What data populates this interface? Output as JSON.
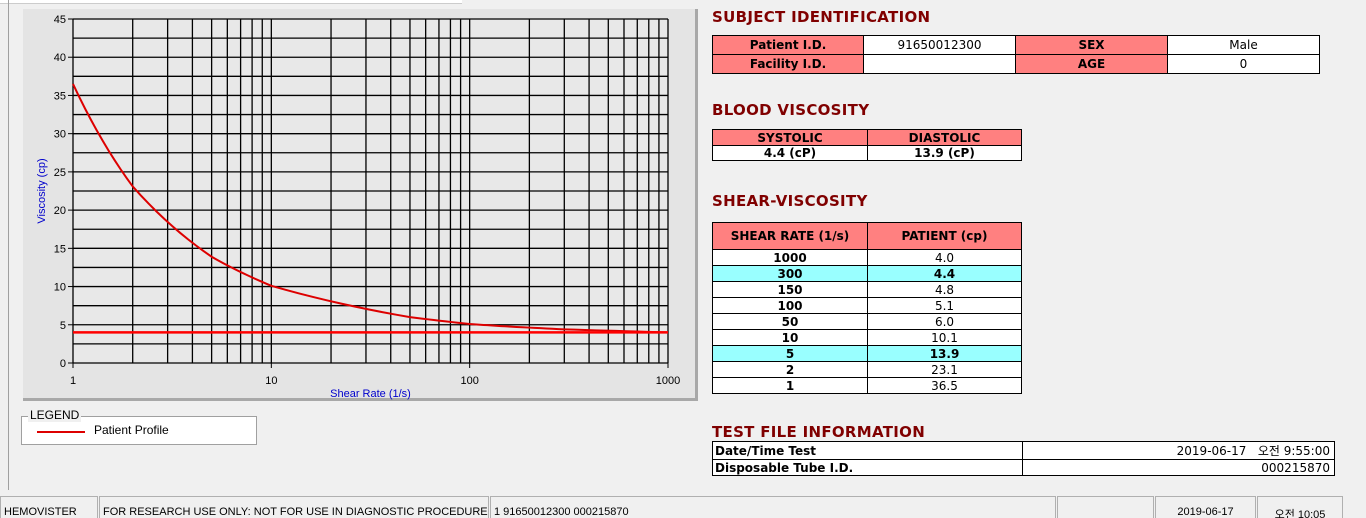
{
  "chart_data": {
    "type": "line",
    "xlabel": "Shear Rate (1/s)",
    "ylabel": "Viscosity (cp)",
    "xscale": "log",
    "xlim": [
      1,
      1000
    ],
    "ylim": [
      0,
      45
    ],
    "xticks": [
      "1",
      "10",
      "100",
      "1000"
    ],
    "yticks": [
      "0",
      "5",
      "10",
      "15",
      "20",
      "25",
      "30",
      "35",
      "40",
      "45"
    ],
    "grid": true,
    "series": [
      {
        "name": "Patient Profile",
        "color": "#dd0000",
        "x": [
          1,
          2,
          5,
          10,
          50,
          100,
          150,
          300,
          1000
        ],
        "y": [
          36.5,
          23.1,
          13.9,
          10.1,
          6.0,
          5.1,
          4.8,
          4.4,
          4.0
        ]
      },
      {
        "color": "#ff0000",
        "x": [
          1,
          1000
        ],
        "y": [
          4.0,
          4.0
        ]
      }
    ]
  },
  "legend": {
    "title": "LEGEND",
    "items": [
      {
        "label": "Patient Profile",
        "color": "#dd0000"
      }
    ]
  },
  "subject": {
    "title": "SUBJECT IDENTIFICATION",
    "patient_id_label": "Patient I.D.",
    "patient_id": "91650012300",
    "sex_label": "SEX",
    "sex": "Male",
    "facility_label": "Facility I.D.",
    "facility": "",
    "age_label": "AGE",
    "age": "0"
  },
  "blood": {
    "title": "BLOOD VISCOSITY",
    "systolic_label": "SYSTOLIC",
    "diastolic_label": "DIASTOLIC",
    "systolic": "4.4 (cP)",
    "diastolic": "13.9 (cP)"
  },
  "shear": {
    "title": "SHEAR-VISCOSITY",
    "col1": "SHEAR RATE (1/s)",
    "col2": "PATIENT (cp)",
    "rows": [
      [
        "1000",
        "4.0",
        false
      ],
      [
        "300",
        "4.4",
        true
      ],
      [
        "150",
        "4.8",
        false
      ],
      [
        "100",
        "5.1",
        false
      ],
      [
        "50",
        "6.0",
        false
      ],
      [
        "10",
        "10.1",
        false
      ],
      [
        "5",
        "13.9",
        true
      ],
      [
        "2",
        "23.1",
        false
      ],
      [
        "1",
        "36.5",
        false
      ]
    ]
  },
  "file": {
    "title": "TEST FILE INFORMATION",
    "date_label": "Date/Time Test",
    "date": "2019-06-17   오전 9:55:00",
    "tube_label": "Disposable Tube I.D.",
    "tube": "000215870"
  },
  "status": {
    "app": "HEMOVISTER",
    "notice": "FOR RESEARCH USE ONLY: NOT FOR USE IN DIAGNOSTIC PROCEDURES",
    "record": "1  91650012300  000215870",
    "empty": "",
    "date": "2019-06-17",
    "time": "오전 10:05"
  },
  "colors": {
    "header": "#ff8080",
    "highlight": "#99ffff",
    "title": "#800000",
    "axis_label": "#0000cc"
  }
}
